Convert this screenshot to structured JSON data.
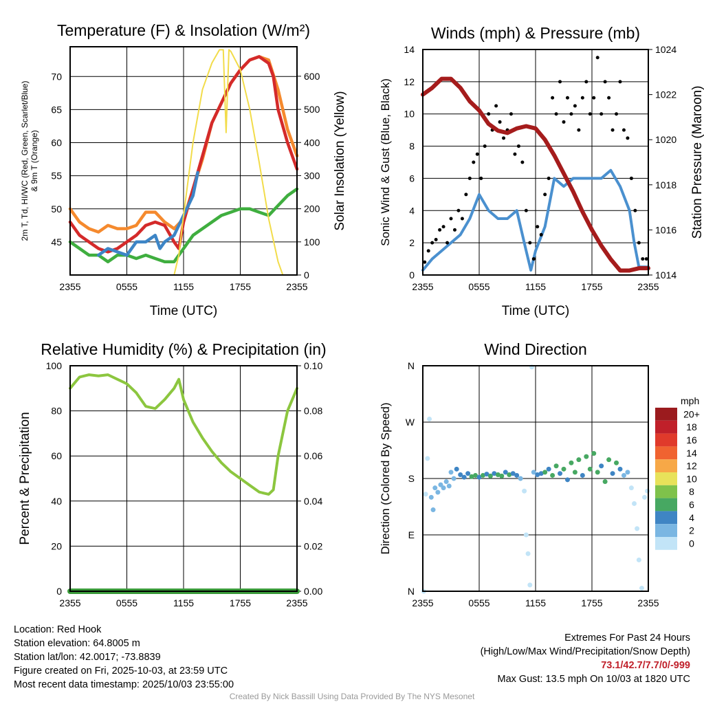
{
  "panels": {
    "temp": {
      "title": "Temperature (F) & Insolation (W/m²)",
      "ylabel_left_1": "2m T, Td, HI/WC (Red, Green, Scarlet/Blue)",
      "ylabel_left_2": "& 9m T (Orange)",
      "ylabel_right": "Solar Insolation (Yellow)",
      "xlabel": "Time (UTC)"
    },
    "wind": {
      "title": "Winds (mph) & Pressure (mb)",
      "ylabel_left": "Sonic Wind & Gust (Blue, Black)",
      "ylabel_right": "Station Pressure (Maroon)",
      "xlabel": "Time (UTC)"
    },
    "rh": {
      "title": "Relative Humidity (%) & Precipitation (in)",
      "ylabel_left": "Percent & Precipitation"
    },
    "dir": {
      "title": "Wind Direction",
      "ylabel_left": "Direction (Colored By Speed)",
      "colorbar_title": "mph"
    }
  },
  "chart_data": [
    {
      "type": "line",
      "title": "Temperature (F) & Insolation (W/m2)",
      "xlabel": "Time (UTC)",
      "x_ticks": [
        "2355",
        "0555",
        "1155",
        "1755",
        "2355"
      ],
      "xlim_hours": [
        0,
        24
      ],
      "ylim": [
        40,
        74.5
      ],
      "y_ticks": [
        45,
        50,
        55,
        60,
        65,
        70
      ],
      "y2lim": [
        0,
        689
      ],
      "y2_ticks": [
        0,
        100,
        200,
        300,
        400,
        500,
        600
      ],
      "series": [
        {
          "name": "9m T",
          "axis": "left",
          "color": "#f58a2e",
          "x": [
            0,
            1,
            2,
            3,
            4,
            5,
            6,
            7,
            8,
            9,
            10,
            11,
            12,
            13,
            14,
            15,
            16,
            17,
            18,
            19,
            20,
            21,
            22,
            23,
            24
          ],
          "values": [
            50,
            48,
            47,
            46.5,
            47.5,
            47,
            47,
            47.5,
            49.5,
            49.5,
            48,
            47,
            48.5,
            53,
            57.5,
            63,
            66,
            69,
            71,
            72.5,
            73,
            72.5,
            68,
            62,
            58
          ]
        },
        {
          "name": "2m T",
          "axis": "left",
          "color": "#d42a2a",
          "x": [
            0,
            1,
            2,
            3,
            4,
            5,
            6,
            7,
            8,
            9,
            10,
            11,
            11.5,
            12,
            13,
            14,
            15,
            16,
            17,
            18,
            19,
            20,
            21,
            21.5,
            22,
            23,
            24
          ],
          "values": [
            48,
            46,
            45,
            44,
            43.5,
            44,
            45,
            46,
            47.5,
            48,
            47.5,
            45,
            44,
            48,
            53,
            58,
            63,
            66,
            69,
            71,
            72.5,
            73,
            72,
            70,
            65,
            60,
            56
          ]
        },
        {
          "name": "Td",
          "axis": "left",
          "color": "#3fae3f",
          "x": [
            0,
            1,
            2,
            3,
            4,
            5,
            6,
            7,
            8,
            9,
            10,
            11,
            12,
            13,
            14,
            15,
            16,
            17,
            18,
            19,
            20,
            21,
            22,
            23,
            24
          ],
          "values": [
            45,
            44,
            43,
            43,
            42,
            43,
            43,
            42.5,
            43,
            42.5,
            42,
            42,
            44,
            46,
            47,
            48,
            49,
            49.5,
            50,
            50,
            49.5,
            49,
            50.5,
            52,
            53
          ]
        },
        {
          "name": "HI/WC",
          "axis": "left",
          "color": "#3d85c6",
          "x": [
            3,
            4,
            5,
            6,
            7,
            8,
            9,
            9.5,
            10,
            11,
            12,
            13,
            13.5
          ],
          "values": [
            43,
            44,
            43.5,
            43,
            45,
            45,
            46,
            44,
            45,
            46,
            49,
            52,
            55.5
          ]
        },
        {
          "name": "Solar Insolation",
          "axis": "right",
          "color": "#f2dc4a",
          "x": [
            0,
            11,
            11.5,
            12,
            13,
            14,
            15,
            15.8,
            16.2,
            16.5,
            16.8,
            17,
            18,
            19,
            20,
            21,
            22,
            22.5,
            24
          ],
          "values": [
            0,
            0,
            60,
            180,
            400,
            560,
            640,
            680,
            680,
            430,
            680,
            675,
            620,
            500,
            340,
            170,
            40,
            0,
            0
          ]
        }
      ]
    },
    {
      "type": "line",
      "title": "Winds (mph) & Pressure (mb)",
      "xlabel": "Time (UTC)",
      "x_ticks": [
        "2355",
        "0555",
        "1155",
        "1755",
        "2355"
      ],
      "xlim_hours": [
        0,
        24
      ],
      "ylim": [
        0,
        14
      ],
      "y_ticks": [
        0,
        2,
        4,
        6,
        8,
        10,
        12,
        14
      ],
      "y2lim": [
        1014,
        1024
      ],
      "y2_ticks": [
        1014,
        1016,
        1018,
        1020,
        1022,
        1024
      ],
      "series": [
        {
          "name": "Sonic Wind",
          "axis": "left",
          "color": "#4a90cf",
          "x": [
            0,
            1,
            2,
            3,
            4,
            5,
            6,
            7,
            8,
            9,
            10,
            11,
            11.5,
            12,
            13,
            14,
            15,
            16,
            17,
            18,
            19,
            20,
            21,
            22,
            22.5,
            23,
            24
          ],
          "values": [
            0.3,
            1,
            1.5,
            2,
            2.5,
            3.5,
            5,
            4,
            3.5,
            3.5,
            4,
            1.5,
            0.3,
            1.5,
            3,
            6,
            5.5,
            6,
            6,
            6,
            6,
            6.5,
            5.5,
            4,
            2,
            0.5,
            0.5
          ]
        },
        {
          "name": "Gust",
          "axis": "left",
          "color": "#000000",
          "style": "points",
          "x": [
            0.2,
            0.6,
            1,
            1.4,
            1.8,
            2.2,
            2.6,
            3,
            3.4,
            3.8,
            4.2,
            4.6,
            5,
            5.4,
            5.8,
            6.2,
            6.6,
            7,
            7.4,
            7.8,
            8.2,
            8.6,
            9,
            9.4,
            9.8,
            10.2,
            10.6,
            11,
            11.4,
            11.8,
            12.2,
            12.6,
            13,
            13.4,
            13.8,
            14.2,
            14.6,
            15,
            15.4,
            15.8,
            16.2,
            16.6,
            17,
            17.4,
            17.8,
            18.2,
            18.6,
            19,
            19.4,
            19.8,
            20.2,
            20.6,
            21,
            21.4,
            21.8,
            22.2,
            22.6,
            23,
            23.4,
            23.8
          ],
          "values": [
            0.8,
            1.5,
            2,
            2.2,
            2.8,
            3,
            2,
            3.5,
            2.8,
            4,
            3.5,
            5,
            6,
            7,
            7.5,
            6,
            8,
            10,
            9,
            10.5,
            9.5,
            8.5,
            9,
            10,
            7.5,
            8,
            7,
            4,
            2,
            1,
            3,
            2.5,
            5,
            6,
            11,
            10,
            12,
            9.5,
            11,
            10,
            10.5,
            9,
            11,
            12,
            10,
            11,
            13.5,
            10,
            12,
            11,
            9,
            10,
            12,
            9,
            8.5,
            6,
            4,
            2,
            1,
            1
          ]
        },
        {
          "name": "Station Pressure",
          "axis": "right",
          "color": "#a51c1c",
          "x": [
            0,
            1,
            2,
            3,
            4,
            5,
            6,
            7,
            8,
            9,
            10,
            11,
            12,
            13,
            14,
            15,
            16,
            17,
            18,
            19,
            20,
            21,
            22,
            23,
            24
          ],
          "values": [
            1022,
            1022.3,
            1022.7,
            1022.7,
            1022.3,
            1021.7,
            1021.3,
            1020.7,
            1020.4,
            1020.3,
            1020.5,
            1020.6,
            1020.5,
            1020.0,
            1019.3,
            1018.5,
            1017.7,
            1016.8,
            1016.0,
            1015.3,
            1014.7,
            1014.2,
            1014.2,
            1014.3,
            1014.3
          ]
        }
      ]
    },
    {
      "type": "line",
      "title": "Relative Humidity (%) & Precipitation (in)",
      "x_ticks": [
        "2355",
        "0555",
        "1155",
        "1755",
        "2355"
      ],
      "xlim_hours": [
        0,
        24
      ],
      "ylim": [
        0,
        100
      ],
      "y_ticks": [
        0,
        20,
        40,
        60,
        80,
        100
      ],
      "y2lim": [
        0,
        0.1
      ],
      "y2_ticks": [
        "0.00",
        "0.02",
        "0.04",
        "0.06",
        "0.08",
        "0.10"
      ],
      "series": [
        {
          "name": "Relative Humidity",
          "axis": "left",
          "color": "#8cc63f",
          "x": [
            0,
            1,
            2,
            3,
            4,
            5,
            6,
            7,
            8,
            9,
            10,
            11,
            11.5,
            12,
            13,
            14,
            15,
            16,
            17,
            18,
            19,
            20,
            21,
            21.5,
            22,
            23,
            24
          ],
          "values": [
            90,
            95,
            96,
            95.5,
            96,
            94,
            92,
            88,
            82,
            81,
            85,
            90,
            94,
            85,
            75,
            68,
            62,
            57,
            53,
            50,
            47,
            44,
            43,
            45,
            60,
            80,
            90
          ]
        },
        {
          "name": "Precipitation",
          "axis": "right",
          "color": "#3a9a3a",
          "x": [
            0,
            24
          ],
          "values": [
            0,
            0
          ]
        }
      ]
    },
    {
      "type": "scatter",
      "title": "Wind Direction",
      "x_ticks": [
        "2355",
        "0555",
        "1155",
        "1755",
        "2355"
      ],
      "xlim_hours": [
        0,
        24
      ],
      "ylim_degrees": [
        0,
        360
      ],
      "y_ticks": [
        "N",
        "E",
        "S",
        "W",
        "N"
      ],
      "colorbar": {
        "title": "mph",
        "labels": [
          "20+",
          "18",
          "16",
          "14",
          "12",
          "10",
          "8",
          "6",
          "4",
          "2",
          "0"
        ],
        "colors": [
          "#9b1b1e",
          "#c0202a",
          "#e03a2b",
          "#f06330",
          "#f7a847",
          "#e8e25a",
          "#7fc24b",
          "#47a862",
          "#3f85c4",
          "#7ab6e2",
          "#c2e4f7"
        ]
      },
      "points_hour_dir_speed": [
        [
          0.1,
          0,
          0.5
        ],
        [
          0.3,
          155,
          1
        ],
        [
          0.5,
          212,
          1
        ],
        [
          0.7,
          275,
          1
        ],
        [
          0.9,
          150,
          2
        ],
        [
          1.1,
          130,
          2
        ],
        [
          1.3,
          165,
          2
        ],
        [
          1.6,
          158,
          2
        ],
        [
          1.9,
          170,
          2
        ],
        [
          2.2,
          165,
          3
        ],
        [
          2.5,
          175,
          3
        ],
        [
          2.8,
          168,
          3
        ],
        [
          3,
          190,
          3
        ],
        [
          3.3,
          180,
          3
        ],
        [
          3.6,
          195,
          4
        ],
        [
          4,
          186,
          4
        ],
        [
          4.4,
          182,
          4
        ],
        [
          4.8,
          188,
          4
        ],
        [
          5.2,
          183,
          6
        ],
        [
          5.6,
          185,
          6
        ],
        [
          6,
          182,
          4
        ],
        [
          6.4,
          185,
          6
        ],
        [
          6.8,
          187,
          4
        ],
        [
          7.2,
          184,
          6
        ],
        [
          7.6,
          188,
          4
        ],
        [
          8,
          186,
          6
        ],
        [
          8.4,
          184,
          6
        ],
        [
          8.8,
          190,
          4
        ],
        [
          9.2,
          186,
          6
        ],
        [
          9.6,
          188,
          4
        ],
        [
          10,
          185,
          4
        ],
        [
          10.4,
          180,
          2
        ],
        [
          10.8,
          160,
          1
        ],
        [
          11,
          90,
          1
        ],
        [
          11.2,
          60,
          1
        ],
        [
          11.4,
          10,
          0.5
        ],
        [
          11.6,
          358,
          0.3
        ],
        [
          11.8,
          190,
          2
        ],
        [
          12.2,
          186,
          4
        ],
        [
          12.6,
          188,
          4
        ],
        [
          13,
          190,
          6
        ],
        [
          13.4,
          195,
          4
        ],
        [
          13.8,
          185,
          6
        ],
        [
          14.2,
          200,
          6
        ],
        [
          14.6,
          188,
          4
        ],
        [
          15,
          195,
          6
        ],
        [
          15.4,
          178,
          4
        ],
        [
          15.8,
          205,
          6
        ],
        [
          16.2,
          190,
          6
        ],
        [
          16.6,
          210,
          6
        ],
        [
          17,
          185,
          4
        ],
        [
          17.4,
          215,
          6
        ],
        [
          17.8,
          195,
          6
        ],
        [
          18.2,
          220,
          6
        ],
        [
          18.6,
          190,
          6
        ],
        [
          19,
          200,
          4
        ],
        [
          19.4,
          175,
          6
        ],
        [
          19.8,
          210,
          6
        ],
        [
          20.2,
          188,
          4
        ],
        [
          20.6,
          205,
          6
        ],
        [
          21,
          195,
          4
        ],
        [
          21.4,
          185,
          3
        ],
        [
          21.8,
          190,
          2
        ],
        [
          22.2,
          165,
          1
        ],
        [
          22.5,
          140,
          1
        ],
        [
          22.8,
          100,
          1
        ],
        [
          23,
          50,
          0.5
        ],
        [
          23.3,
          5,
          0.3
        ],
        [
          23.6,
          150,
          1
        ],
        [
          23.9,
          160,
          1
        ]
      ]
    }
  ],
  "footer": {
    "location": "Location: Red Hook",
    "elevation": "Station elevation: 64.8005 m",
    "latlon": "Station lat/lon: 42.0017; -73.8839",
    "created": "Figure created on Fri, 2025-10-03, at 23:59 UTC",
    "recent": "Most recent data timestamp: 2025/10/03 23:55:00",
    "extremes_title": "Extremes For Past 24 Hours",
    "extremes_legend": "(High/Low/Max Wind/Precipitation/Snow Depth)",
    "extremes_values": "73.1/42.7/7.7/0/-999",
    "max_gust": "Max Gust: 13.5 mph On 10/03 at 1820 UTC",
    "credit": "Created By Nick Bassill Using Data Provided By The NYS Mesonet"
  }
}
